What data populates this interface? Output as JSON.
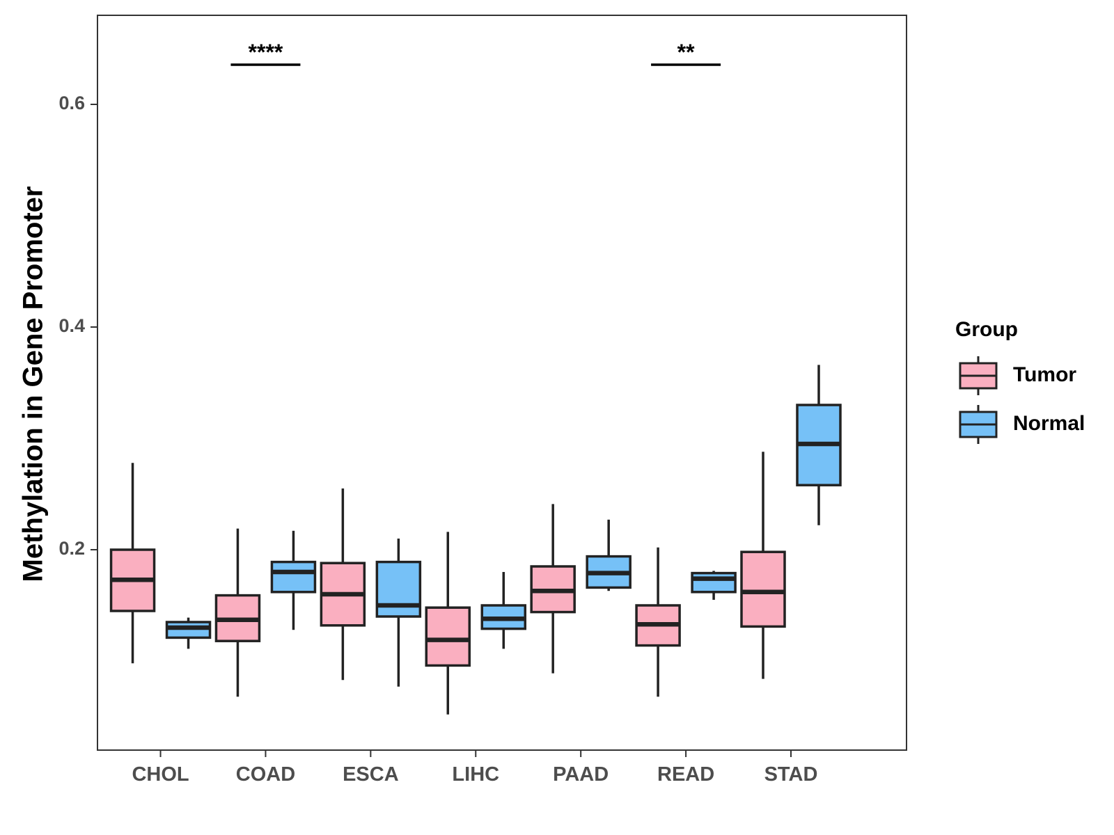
{
  "chart_data": {
    "type": "boxplot",
    "title": "",
    "xlabel": "",
    "ylabel": "Methylation in Gene Promoter",
    "ylim": [
      0.02,
      0.68
    ],
    "yticks": [
      0.2,
      0.4,
      0.6
    ],
    "ytick_labels": [
      "0.2",
      "0.4",
      "0.6"
    ],
    "categories": [
      "CHOL",
      "COAD",
      "ESCA",
      "LIHC",
      "PAAD",
      "READ",
      "STAD"
    ],
    "legend": {
      "title": "Group",
      "position": "right",
      "items": [
        {
          "label": "Tumor",
          "color": "#FAAFC0"
        },
        {
          "label": "Normal",
          "color": "#76C1F7"
        }
      ]
    },
    "series": [
      {
        "name": "Tumor",
        "color": "#FAAFC0",
        "boxes": [
          {
            "min": 0.098,
            "q1": 0.145,
            "median": 0.173,
            "q3": 0.2,
            "max": 0.278
          },
          {
            "min": 0.068,
            "q1": 0.118,
            "median": 0.137,
            "q3": 0.159,
            "max": 0.219
          },
          {
            "min": 0.083,
            "q1": 0.132,
            "median": 0.16,
            "q3": 0.188,
            "max": 0.255
          },
          {
            "min": 0.052,
            "q1": 0.096,
            "median": 0.119,
            "q3": 0.148,
            "max": 0.216
          },
          {
            "min": 0.089,
            "q1": 0.144,
            "median": 0.163,
            "q3": 0.185,
            "max": 0.241
          },
          {
            "min": 0.068,
            "q1": 0.114,
            "median": 0.133,
            "q3": 0.15,
            "max": 0.202
          },
          {
            "min": 0.084,
            "q1": 0.131,
            "median": 0.162,
            "q3": 0.198,
            "max": 0.288
          }
        ]
      },
      {
        "name": "Normal",
        "color": "#76C1F7",
        "boxes": [
          {
            "min": 0.111,
            "q1": 0.121,
            "median": 0.13,
            "q3": 0.135,
            "max": 0.139
          },
          {
            "min": 0.128,
            "q1": 0.162,
            "median": 0.18,
            "q3": 0.189,
            "max": 0.217
          },
          {
            "min": 0.077,
            "q1": 0.14,
            "median": 0.15,
            "q3": 0.189,
            "max": 0.21
          },
          {
            "min": 0.111,
            "q1": 0.129,
            "median": 0.138,
            "q3": 0.15,
            "max": 0.18
          },
          {
            "min": 0.163,
            "q1": 0.166,
            "median": 0.179,
            "q3": 0.194,
            "max": 0.227
          },
          {
            "min": 0.155,
            "q1": 0.162,
            "median": 0.174,
            "q3": 0.179,
            "max": 0.181
          },
          {
            "min": 0.222,
            "q1": 0.258,
            "median": 0.295,
            "q3": 0.33,
            "max": 0.366
          }
        ]
      }
    ],
    "annotations": [
      {
        "category": "COAD",
        "label": "****"
      },
      {
        "category": "READ",
        "label": "**"
      }
    ]
  }
}
